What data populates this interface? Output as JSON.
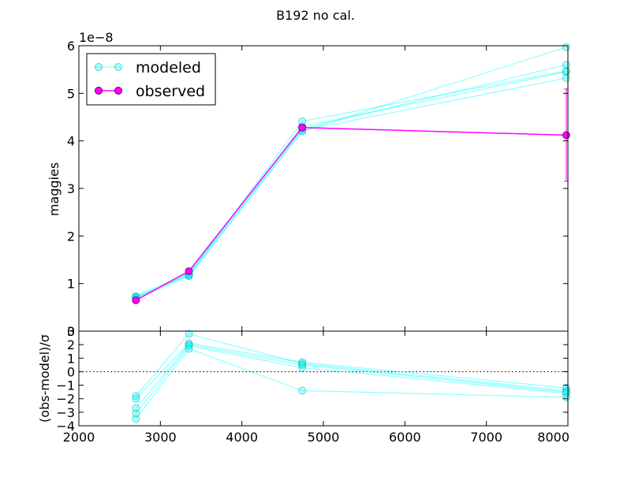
{
  "colors": {
    "modeled": "#00ffff",
    "observed": "#ff00ff",
    "axis": "#000000",
    "background": "#ffffff"
  },
  "chart_data": [
    {
      "panel": "main",
      "type": "line",
      "title": "B192 no cal.",
      "ylabel": "maggies",
      "offset_label": "1e−8",
      "xlim": [
        2000,
        8000
      ],
      "ylim": [
        0,
        6
      ],
      "yticks": [
        "0",
        "1",
        "2",
        "3",
        "4",
        "5",
        "6"
      ],
      "legend": {
        "placement": "top-left",
        "entries": [
          "modeled",
          "observed"
        ]
      },
      "x": [
        2700,
        3350,
        4740,
        7980
      ],
      "modeled_series": [
        {
          "name": "modeled",
          "values": [
            0.72,
            1.17,
            4.2,
            5.97
          ]
        },
        {
          "values": [
            0.7,
            1.2,
            4.25,
            5.6
          ]
        },
        {
          "values": [
            0.74,
            1.22,
            4.3,
            5.45
          ]
        },
        {
          "values": [
            0.68,
            1.15,
            4.22,
            5.32
          ]
        },
        {
          "values": [
            0.71,
            1.19,
            4.41,
            5.47
          ]
        }
      ],
      "observed_series": {
        "name": "observed",
        "values": [
          0.65,
          1.26,
          4.28,
          4.12
        ],
        "errors": [
          0.03,
          0.04,
          0.06,
          0.97
        ]
      }
    },
    {
      "panel": "residual",
      "type": "line",
      "ylabel": "(obs-model)/σ",
      "xlim": [
        2000,
        8000
      ],
      "ylim": [
        -4,
        3
      ],
      "xticks": [
        "2000",
        "3000",
        "4000",
        "5000",
        "6000",
        "7000",
        "8000"
      ],
      "yticks": [
        "−4",
        "−3",
        "−2",
        "−1",
        "0",
        "1",
        "2",
        "3"
      ],
      "reference_line": 0,
      "x": [
        2700,
        3350,
        4740,
        7980
      ],
      "series": [
        {
          "values": [
            -1.8,
            2.8,
            0.6,
            -1.4
          ]
        },
        {
          "values": [
            -2.0,
            2.1,
            0.7,
            -1.2
          ]
        },
        {
          "values": [
            -2.7,
            2.0,
            0.5,
            -1.5
          ]
        },
        {
          "values": [
            -3.1,
            1.9,
            0.3,
            -1.6
          ]
        },
        {
          "values": [
            -3.5,
            1.7,
            -1.4,
            -1.9
          ]
        }
      ]
    }
  ]
}
